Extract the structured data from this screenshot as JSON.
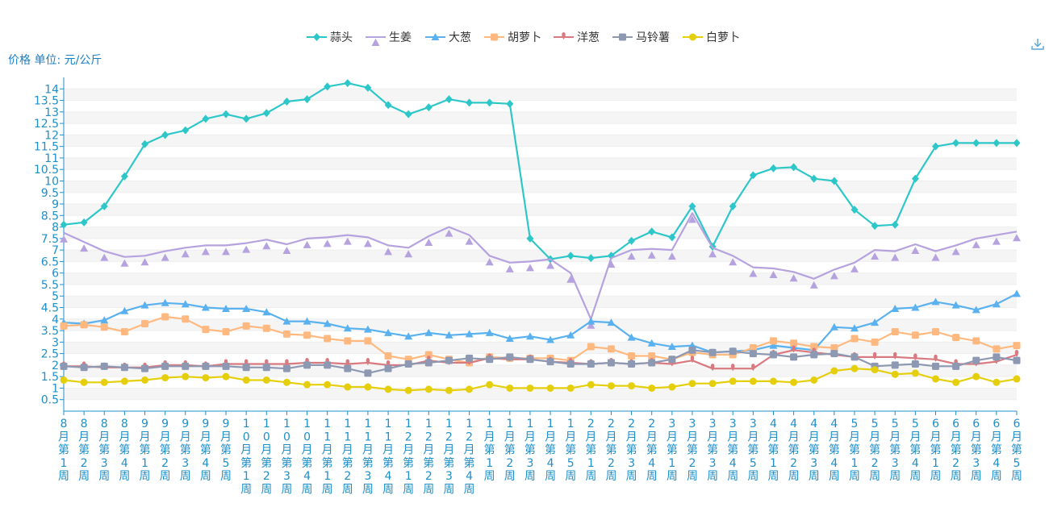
{
  "chart_data": {
    "type": "line",
    "unit_label": "价格 单位: 元/公斤",
    "x": [
      "8月第1周",
      "8月第2周",
      "8月第3周",
      "8月第4周",
      "9月第1周",
      "9月第2周",
      "9月第3周",
      "9月第4周",
      "9月第5周",
      "10月第1周",
      "10月第2周",
      "10月第3周",
      "10月第4周",
      "11月第1周",
      "11月第2周",
      "11月第3周",
      "11月第4周",
      "12月第1周",
      "12月第2周",
      "12月第3周",
      "12月第4周",
      "1月第1周",
      "1月第2周",
      "1月第3周",
      "1月第4周",
      "1月第5周",
      "2月第1周",
      "2月第2周",
      "2月第3周",
      "2月第4周",
      "3月第1周",
      "3月第2周",
      "3月第3周",
      "3月第4周",
      "3月第5周",
      "4月第1周",
      "4月第2周",
      "4月第3周",
      "4月第4周",
      "5月第1周",
      "5月第2周",
      "5月第3周",
      "5月第4周",
      "6月第1周",
      "6月第2周",
      "6月第3周",
      "6月第4周",
      "6月第5周"
    ],
    "ylim": [
      0,
      14.5
    ],
    "yticks": [
      0.5,
      1,
      1.5,
      2,
      2.5,
      3,
      3.5,
      4,
      4.5,
      5,
      5.5,
      6,
      6.5,
      7,
      7.5,
      8,
      8.5,
      9,
      9.5,
      10,
      10.5,
      11,
      11.5,
      12,
      12.5,
      13,
      13.5,
      14
    ],
    "grid": true,
    "legend_position": "top",
    "series": [
      {
        "name": "蒜头",
        "color": "#2ec7c9",
        "marker": "diamond",
        "values": [
          8.1,
          8.2,
          8.9,
          10.2,
          11.6,
          12,
          12.2,
          12.7,
          12.9,
          12.7,
          12.95,
          13.45,
          13.55,
          14.1,
          14.25,
          14.05,
          13.3,
          12.9,
          13.2,
          13.55,
          13.4,
          13.4,
          13.35,
          7.5,
          6.6,
          6.75,
          6.65,
          6.75,
          7.4,
          7.8,
          7.55,
          8.9,
          7.15,
          8.9,
          10.25,
          10.55,
          10.6,
          10.1,
          10,
          8.75,
          8.05,
          8.1,
          10.1,
          11.5,
          11.65,
          11.65,
          11.65,
          11.65
        ]
      },
      {
        "name": "生姜",
        "color": "#b6a2de",
        "marker": "triangle",
        "values": [
          7.75,
          7.35,
          6.95,
          6.7,
          6.75,
          6.95,
          7.1,
          7.2,
          7.2,
          7.3,
          7.45,
          7.25,
          7.5,
          7.55,
          7.65,
          7.55,
          7.2,
          7.1,
          7.6,
          8,
          7.65,
          6.75,
          6.45,
          6.5,
          6.6,
          6,
          4,
          6.65,
          7,
          7.05,
          7,
          8.6,
          7.1,
          6.75,
          6.25,
          6.2,
          6.05,
          5.75,
          6.15,
          6.45,
          7,
          6.95,
          7.25,
          6.95,
          7.2,
          7.5,
          7.65,
          7.8
        ]
      },
      {
        "name": "大葱",
        "color": "#5ab1ef",
        "marker": "triangle",
        "values": [
          3.85,
          3.8,
          3.95,
          4.35,
          4.6,
          4.7,
          4.65,
          4.5,
          4.45,
          4.45,
          4.3,
          3.9,
          3.9,
          3.8,
          3.6,
          3.55,
          3.4,
          3.25,
          3.4,
          3.3,
          3.35,
          3.4,
          3.15,
          3.25,
          3.1,
          3.3,
          3.9,
          3.85,
          3.2,
          2.95,
          2.8,
          2.85,
          2.55,
          2.6,
          2.65,
          2.85,
          2.75,
          2.65,
          3.65,
          3.6,
          3.85,
          4.45,
          4.5,
          4.75,
          4.6,
          4.4,
          4.65,
          5.1
        ]
      },
      {
        "name": "胡萝卜",
        "color": "#ffb980",
        "marker": "square",
        "values": [
          3.7,
          3.75,
          3.65,
          3.45,
          3.8,
          4.1,
          4,
          3.55,
          3.45,
          3.7,
          3.6,
          3.35,
          3.3,
          3.15,
          3.05,
          3.05,
          2.4,
          2.25,
          2.45,
          2.25,
          2.1,
          2.35,
          2.3,
          2.3,
          2.3,
          2.2,
          2.8,
          2.7,
          2.4,
          2.4,
          2.25,
          2.55,
          2.45,
          2.45,
          2.75,
          3.05,
          2.95,
          2.8,
          2.75,
          3.15,
          3,
          3.45,
          3.3,
          3.45,
          3.2,
          3.05,
          2.7,
          2.85
        ]
      },
      {
        "name": "洋葱",
        "color": "#d87a80",
        "marker": "pin",
        "values": [
          1.95,
          1.95,
          1.9,
          1.9,
          1.9,
          2,
          2,
          1.95,
          2.05,
          2.05,
          2.05,
          2.05,
          2.1,
          2.1,
          2.05,
          2.1,
          2,
          2,
          2.2,
          2.1,
          2.1,
          2.3,
          2.25,
          2.25,
          2.15,
          2.1,
          2.05,
          2.1,
          2.05,
          2.1,
          2.05,
          2.2,
          1.85,
          1.85,
          1.85,
          2.45,
          2.65,
          2.55,
          2.45,
          2.35,
          2.35,
          2.35,
          2.3,
          2.25,
          2.05,
          2.05,
          2.15,
          2.45
        ]
      },
      {
        "name": "马铃薯",
        "color": "#8d98b3",
        "marker": "square",
        "values": [
          1.95,
          1.9,
          1.95,
          1.9,
          1.85,
          1.95,
          1.95,
          1.95,
          1.95,
          1.9,
          1.9,
          1.85,
          2,
          2,
          1.85,
          1.65,
          1.85,
          2.05,
          2.1,
          2.2,
          2.3,
          2.25,
          2.35,
          2.25,
          2.15,
          2.05,
          2.05,
          2.1,
          2.05,
          2.1,
          2.25,
          2.65,
          2.55,
          2.6,
          2.5,
          2.45,
          2.35,
          2.45,
          2.5,
          2.35,
          1.95,
          2,
          2.05,
          1.95,
          1.95,
          2.2,
          2.35,
          2.2
        ]
      },
      {
        "name": "白萝卜",
        "color": "#e5cf0d",
        "marker": "circle",
        "values": [
          1.35,
          1.25,
          1.25,
          1.3,
          1.35,
          1.45,
          1.5,
          1.45,
          1.5,
          1.35,
          1.35,
          1.25,
          1.15,
          1.15,
          1.05,
          1.05,
          0.95,
          0.9,
          0.95,
          0.9,
          0.95,
          1.15,
          1,
          1,
          1,
          1,
          1.15,
          1.1,
          1.1,
          1,
          1.05,
          1.2,
          1.2,
          1.3,
          1.3,
          1.3,
          1.25,
          1.35,
          1.75,
          1.85,
          1.8,
          1.6,
          1.65,
          1.4,
          1.25,
          1.5,
          1.25,
          1.4
        ]
      }
    ]
  },
  "icons": {
    "download": "download-icon"
  }
}
